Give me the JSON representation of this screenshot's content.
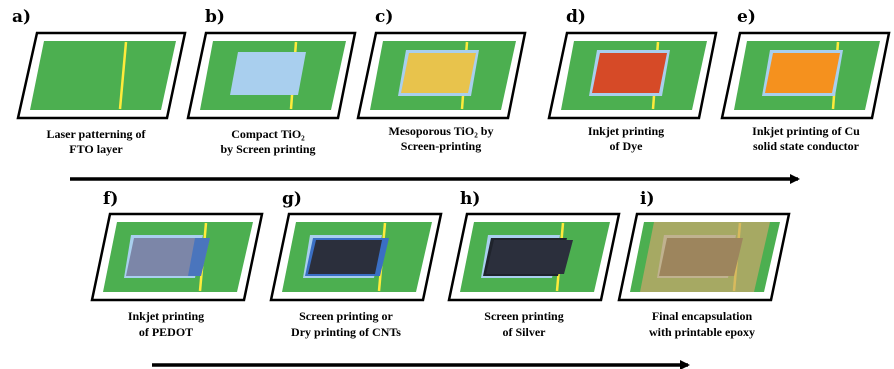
{
  "steps": [
    {
      "letter": "a)",
      "line1": "Laser patterning of",
      "line2": "FTO layer"
    },
    {
      "letter": "b)",
      "line1": "Compact TiO₂",
      "line2": "by Screen printing"
    },
    {
      "letter": "c)",
      "line1": "Mesoporous TiO₂ by",
      "line2": "Screen-printing"
    },
    {
      "letter": "d)",
      "line1": "Inkjet printing",
      "line2": "of Dye"
    },
    {
      "letter": "e)",
      "line1": "Inkjet printing of Cu",
      "line2": "solid state conductor"
    },
    {
      "letter": "f)",
      "line1": "Inkjet printing",
      "line2": "of PEDOT"
    },
    {
      "letter": "g)",
      "line1": "Screen printing or",
      "line2": "Dry printing of CNTs"
    },
    {
      "letter": "h)",
      "line1": "Screen printing",
      "line2": "of Silver"
    },
    {
      "letter": "i)",
      "line1": "Final encapsulation",
      "line2": "with printable epoxy"
    }
  ],
  "colors": {
    "substrate": "#4caf50",
    "laser_line": "#ffeb3b",
    "compact_tio2": "#a9cfee",
    "mesoporous_tio2": "#e8c34c",
    "dye": "#d64a27",
    "cu_conductor": "#f5911e",
    "pedot": "#7c86a8",
    "cnt": "#2b2f3c",
    "silver": "#2b2f3c",
    "epoxy": "#c9a66b"
  }
}
